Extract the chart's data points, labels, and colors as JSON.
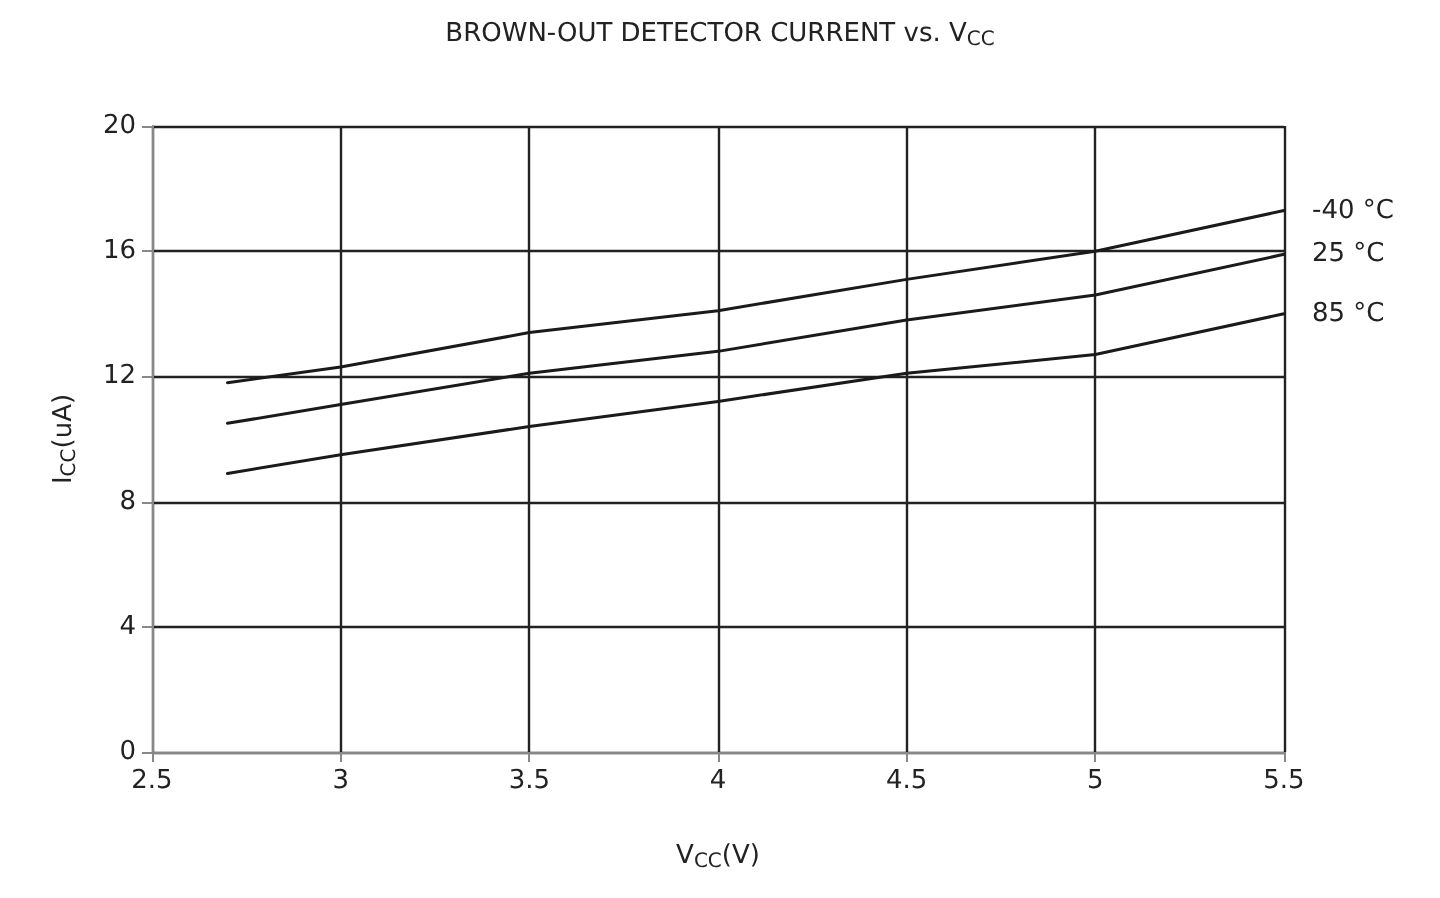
{
  "chart_data": {
    "type": "line",
    "title": "BROWN-OUT DETECTOR CURRENT vs. V$_{CC}$",
    "xlabel": "V$_{CC}$(V)",
    "ylabel": "I$_{CC}$(uA)",
    "x": [
      2.7,
      3,
      3.5,
      4,
      4.5,
      5,
      5.5
    ],
    "series": [
      {
        "name": "-40 °C",
        "color": "#1a1a1a",
        "values": [
          11.8,
          12.3,
          13.4,
          14.1,
          15.1,
          16.0,
          17.3
        ]
      },
      {
        "name": "25 °C",
        "color": "#1a1a1a",
        "values": [
          10.5,
          11.1,
          12.1,
          12.8,
          13.8,
          14.6,
          15.9
        ]
      },
      {
        "name": "85 °C",
        "color": "#1a1a1a",
        "values": [
          8.9,
          9.5,
          10.4,
          11.2,
          12.1,
          12.7,
          14.0
        ]
      }
    ],
    "xlim": [
      2.5,
      5.5
    ],
    "xticks": [
      2.5,
      3,
      3.5,
      4,
      4.5,
      5,
      5.5
    ],
    "ylim": [
      0,
      20
    ],
    "yticks": [
      0,
      4,
      8,
      12,
      16,
      20
    ],
    "grid": true,
    "legend": false,
    "marker": "none",
    "line_style": "solid"
  }
}
